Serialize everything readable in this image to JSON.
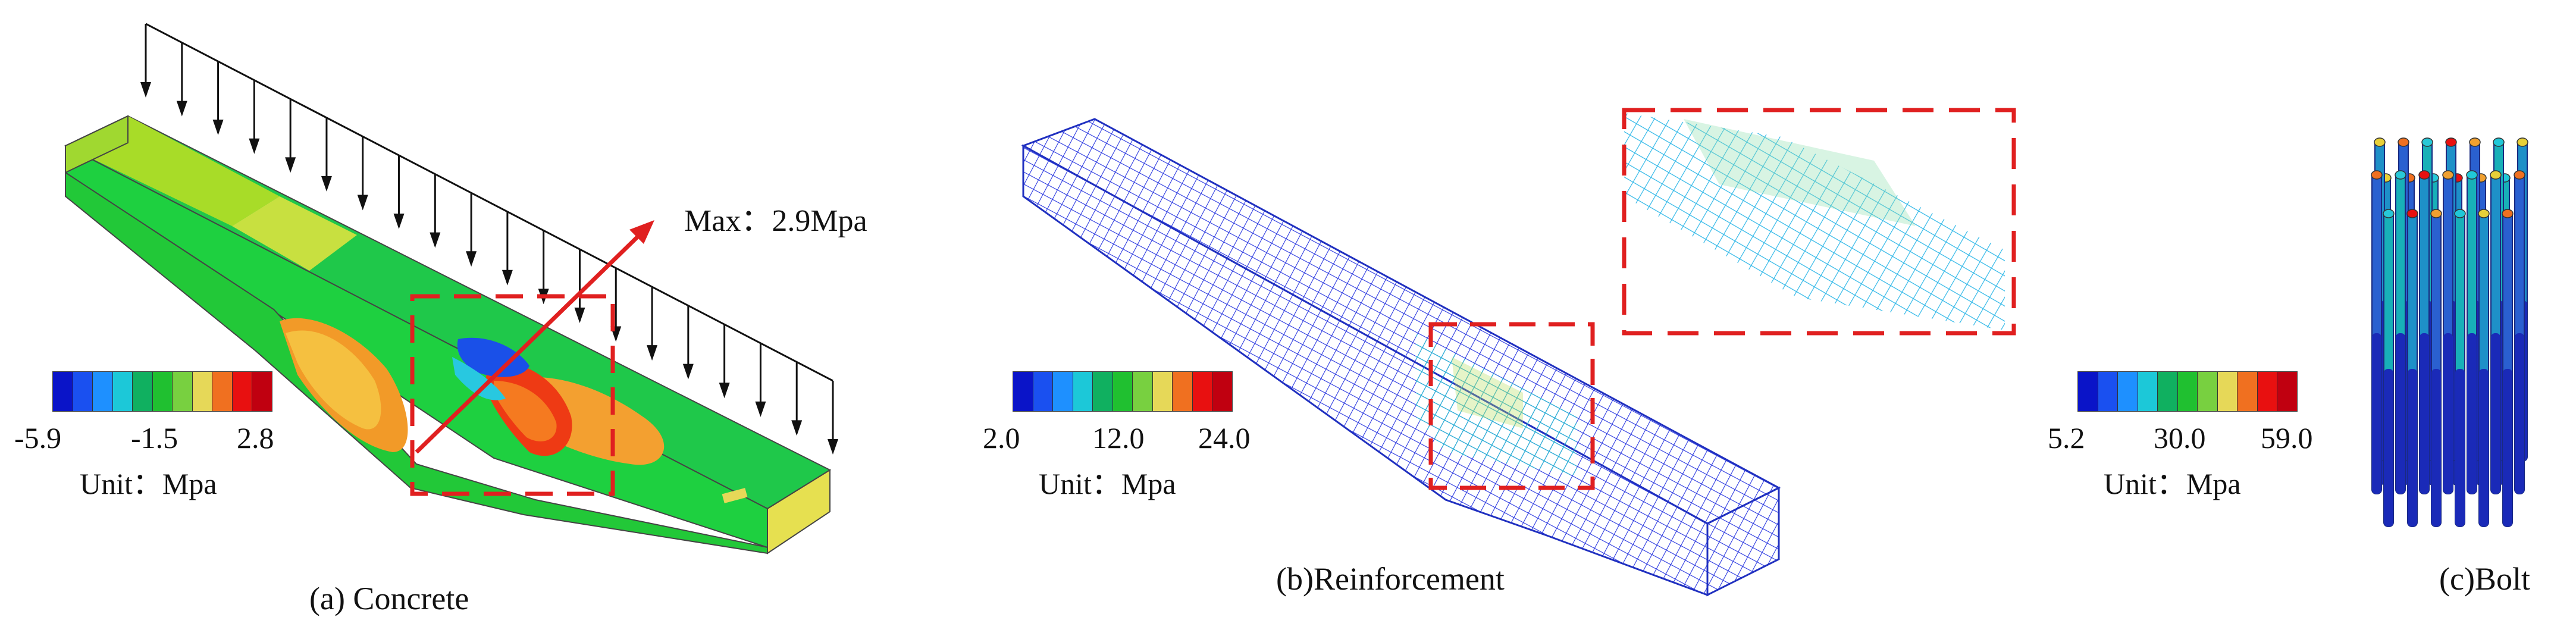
{
  "panels": {
    "concrete": {
      "caption": "(a) Concrete",
      "max_label": "Max：2.9Mpa",
      "legend": {
        "ticks": [
          "-5.9",
          "-1.5",
          "2.8"
        ],
        "unit": "Unit：Mpa"
      }
    },
    "reinforcement": {
      "caption": "(b)Reinforcement",
      "legend": {
        "ticks": [
          "2.0",
          "12.0",
          "24.0"
        ],
        "unit": "Unit：Mpa"
      }
    },
    "bolt": {
      "caption": "(c)Bolt",
      "legend": {
        "ticks": [
          "5.2",
          "30.0",
          "59.0"
        ],
        "unit": "Unit：Mpa"
      }
    }
  },
  "colors": {
    "scale": [
      "#0a14c8",
      "#1a50f0",
      "#1e90ff",
      "#1cc8d8",
      "#10b060",
      "#20c030",
      "#78d040",
      "#e6d858",
      "#f07020",
      "#e81010",
      "#c00010"
    ],
    "highlight_box": "#e02020",
    "load_arrow": "#111111",
    "max_arrow": "#e02020"
  }
}
